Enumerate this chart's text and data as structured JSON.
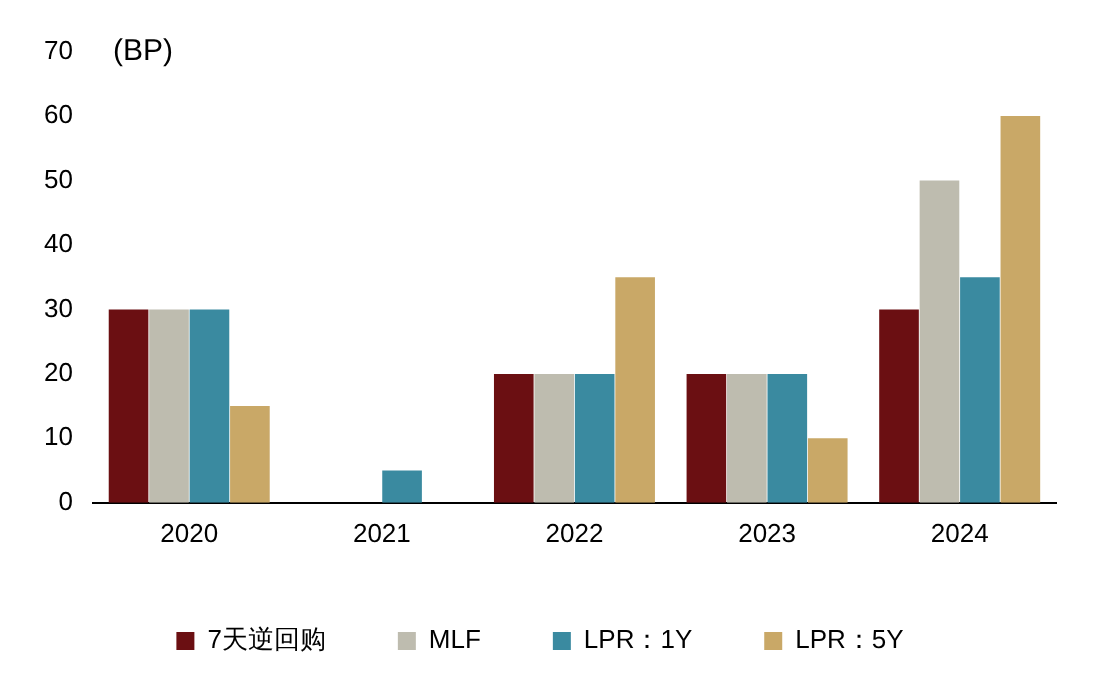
{
  "chart_data": {
    "type": "bar",
    "ylabel": "(BP)",
    "categories": [
      "2020",
      "2021",
      "2022",
      "2023",
      "2024"
    ],
    "series": [
      {
        "name": "7天逆回购",
        "color": "#6b0f12",
        "values": [
          30,
          0,
          20,
          20,
          30
        ]
      },
      {
        "name": "MLF",
        "color": "#bebcaf",
        "values": [
          30,
          0,
          20,
          20,
          50
        ]
      },
      {
        "name": "LPR：1Y",
        "color": "#3a8aa0",
        "values": [
          30,
          5,
          20,
          20,
          35
        ]
      },
      {
        "name": "LPR：5Y",
        "color": "#c9a867",
        "values": [
          15,
          0,
          35,
          10,
          60
        ]
      }
    ],
    "ylim": [
      0,
      70
    ],
    "yticks": [
      0,
      10,
      20,
      30,
      40,
      50,
      60,
      70
    ],
    "grid": false,
    "legend": "bottom"
  }
}
